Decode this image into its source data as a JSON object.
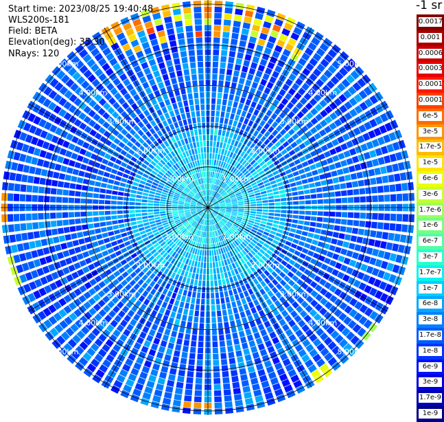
{
  "header": {
    "start_time": "Start time: 2023/08/25 19:40:48",
    "instrument": "WLS200s-181",
    "field": "Field: BETA",
    "elevation": "Elevation(deg): 35.30",
    "nrays": "NRays: 120"
  },
  "colorbar": {
    "title": "-1 sr",
    "entries": [
      {
        "label": "0.0017",
        "color": "#800000"
      },
      {
        "label": "0.001",
        "color": "#a80000"
      },
      {
        "label": "0.0006",
        "color": "#c80000"
      },
      {
        "label": "0.0003",
        "color": "#e60000"
      },
      {
        "label": "0.00017",
        "color": "#ff1800"
      },
      {
        "label": "0.0001",
        "color": "#ff4000"
      },
      {
        "label": "6e-5",
        "color": "#ff6c00"
      },
      {
        "label": "3e-5",
        "color": "#ff9400"
      },
      {
        "label": "1.7e-5",
        "color": "#ffbc00"
      },
      {
        "label": "1e-5",
        "color": "#ffe400"
      },
      {
        "label": "6e-6",
        "color": "#eaff0c"
      },
      {
        "label": "3e-6",
        "color": "#c4ff32"
      },
      {
        "label": "1.7e-6",
        "color": "#9cff5a"
      },
      {
        "label": "1e-6",
        "color": "#76ff80"
      },
      {
        "label": "6e-7",
        "color": "#50ffa6"
      },
      {
        "label": "3e-7",
        "color": "#28ffce"
      },
      {
        "label": "1.7e-7",
        "color": "#06f4f0"
      },
      {
        "label": "1e-7",
        "color": "#00ccff"
      },
      {
        "label": "6e-8",
        "color": "#00a8ff"
      },
      {
        "label": "3e-8",
        "color": "#0080ff"
      },
      {
        "label": "1.7e-8",
        "color": "#005cff"
      },
      {
        "label": "1e-8",
        "color": "#0034ff"
      },
      {
        "label": "6e-9",
        "color": "#0010ff"
      },
      {
        "label": "3e-9",
        "color": "#0000e0"
      },
      {
        "label": "1.7e-9",
        "color": "#0000b4"
      },
      {
        "label": "1e-9",
        "color": "#000088"
      }
    ]
  },
  "chart_data": {
    "type": "heatmap",
    "projection": "polar (PPI)",
    "field": "BETA",
    "nrays": 120,
    "range_rings_km": [
      1,
      2,
      3,
      4,
      5
    ],
    "range_ring_labels": [
      "1.00km",
      "2.00km",
      "3.00km",
      "4.00km",
      "5.00km"
    ],
    "max_range_km": 5.1,
    "azimuth_spokes_deg": [
      0,
      30,
      60,
      90,
      120,
      150,
      180,
      210,
      240,
      270,
      300,
      330
    ],
    "gates_per_ray": 34,
    "ray_mean_log10_beta_by_range_km": {
      "0-1": -6.95,
      "1-2": -7.15,
      "2-3": -7.6,
      "3-4": -7.75,
      "4-5.1": -7.75
    },
    "ray_spread_log10": 0.35,
    "notable_high_values": [
      {
        "azimuth_deg_range": [
          330,
          30
        ],
        "range_km": [
          4.2,
          5.1
        ],
        "log10_beta": [
          -5.5,
          -4.0
        ]
      },
      {
        "azimuth_deg": 146,
        "range_km": 4.9,
        "log10_beta": -5.2
      },
      {
        "azimuth_deg": 183,
        "range_km": 4.85,
        "log10_beta": -4.6
      },
      {
        "azimuth_deg": 270,
        "range_km": 5.05,
        "log10_beta": -4.5
      },
      {
        "azimuth_deg": 252,
        "range_km": 5.0,
        "log10_beta": -5.5
      },
      {
        "azimuth_deg": 128,
        "range_km": 5.0,
        "log10_beta": -5.8
      }
    ],
    "colorbar_labels": [
      "0.0017",
      "0.001",
      "0.0006",
      "0.0003",
      "0.00017",
      "0.0001",
      "6e-5",
      "3e-5",
      "1.7e-5",
      "1e-5",
      "6e-6",
      "3e-6",
      "1.7e-6",
      "1e-6",
      "6e-7",
      "3e-7",
      "1.7e-7",
      "1e-7",
      "6e-8",
      "3e-8",
      "1.7e-8",
      "1e-8",
      "6e-9",
      "3e-9",
      "1.7e-9",
      "1e-9"
    ],
    "colorbar_unit": "-1 sr"
  }
}
